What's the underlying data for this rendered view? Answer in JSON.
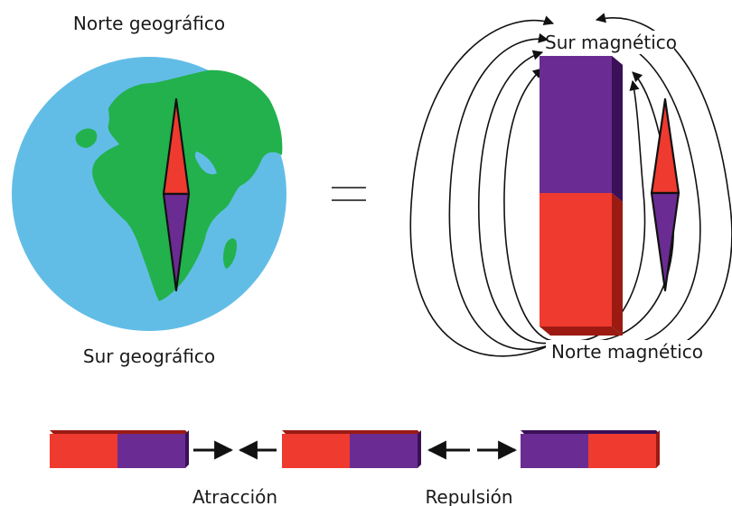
{
  "labels": {
    "geo_north": "Norte geográfico",
    "geo_south": "Sur geográfico",
    "mag_south": "Sur magnético",
    "mag_north": "Norte magnético",
    "attraction": "Atracción",
    "repulsion": "Repulsión",
    "equals": "="
  },
  "colors": {
    "ocean": "#62bde6",
    "land": "#22b14c",
    "red": "#ef3a2f",
    "purple": "#6a2c92",
    "red_dark": "#9b1a12",
    "purple_dark": "#3a1058",
    "line": "#111111"
  }
}
